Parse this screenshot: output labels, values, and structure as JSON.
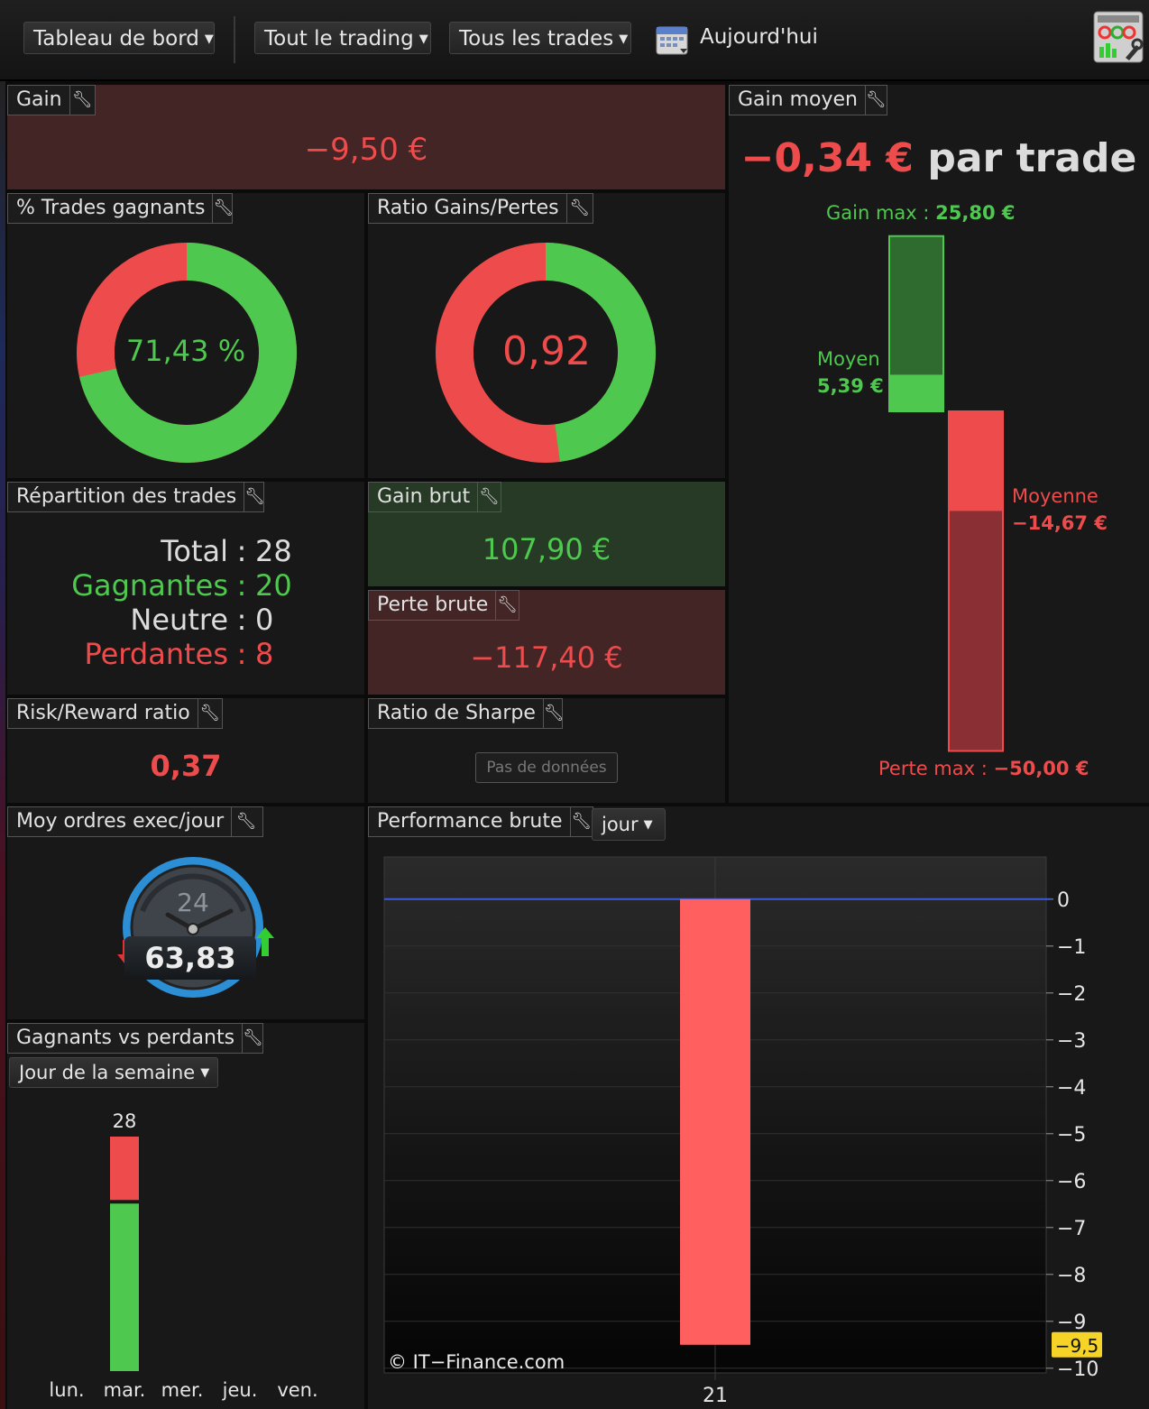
{
  "toolbar": {
    "dashboard": "Tableau de bord",
    "all_trading": "Tout le trading",
    "all_trades": "Tous les trades",
    "today": "Aujourd'hui"
  },
  "gain": {
    "title": "Gain",
    "value": "−9,50 €"
  },
  "avg_gain": {
    "title": "Gain moyen",
    "value": "−0,34 €",
    "suffix": "par trade",
    "max_gain_label": "Gain max :",
    "max_gain_value": "25,80 €",
    "avg_win_label": "Moyen",
    "avg_win_value": "5,39 €",
    "avg_loss_label": "Moyenne",
    "avg_loss_value": "−14,67 €",
    "max_loss_label": "Perte max :",
    "max_loss_value": "−50,00 €",
    "max_gain_num": 25.8,
    "avg_win_num": 5.39,
    "avg_loss_num": -14.67,
    "max_loss_num": -50.0
  },
  "win_pct": {
    "title": "% Trades gagnants",
    "value": "71,43 %",
    "fraction": 0.7143
  },
  "ratio": {
    "title": "Ratio Gains/Pertes",
    "value": "0,92",
    "green_fraction": 0.479
  },
  "split": {
    "title": "Répartition des trades",
    "rows": [
      {
        "label": "Total",
        "value": "28"
      },
      {
        "label": "Gagnantes",
        "value": "20"
      },
      {
        "label": "Neutre",
        "value": "0"
      },
      {
        "label": "Perdantes",
        "value": "8"
      }
    ]
  },
  "gross_gain": {
    "title": "Gain brut",
    "value": "107,90 €"
  },
  "gross_loss": {
    "title": "Perte brute",
    "value": "−117,40 €"
  },
  "risk_reward": {
    "title": "Risk/Reward ratio",
    "value": "0,37"
  },
  "sharpe": {
    "title": "Ratio de Sharpe",
    "nodata": "Pas de données"
  },
  "orders": {
    "title": "Moy ordres exec/jour",
    "value": "63,83",
    "dial_label": "24"
  },
  "perf": {
    "title": "Performance brute",
    "period": "jour",
    "copyright": "© IT−Finance.com",
    "marker": "−9,5"
  },
  "winlose": {
    "title": "Gagnants vs perdants",
    "period": "Jour de la semaine"
  },
  "chart_data": [
    {
      "type": "bar",
      "categories": [
        "21"
      ],
      "values": [
        -9.5
      ],
      "ylim": [
        -10.1,
        0.9
      ],
      "yticks": [
        0,
        -1,
        -2,
        -3,
        -4,
        -5,
        -6,
        -7,
        -8,
        -9,
        -10
      ],
      "ytick_labels": [
        "0",
        "−1",
        "−2",
        "−3",
        "−4",
        "−5",
        "−6",
        "−7",
        "−8",
        "−9",
        "−10"
      ]
    },
    {
      "type": "bar",
      "stacked": true,
      "categories": [
        "lun.",
        "mar.",
        "mer.",
        "jeu.",
        "ven."
      ],
      "series": [
        {
          "values": [
            0,
            20,
            0,
            0,
            0
          ],
          "color": "#4ec84e"
        },
        {
          "values": [
            0,
            8,
            0,
            0,
            0
          ],
          "color": "#ee4c4c"
        }
      ],
      "totals": [
        "",
        "28",
        "",
        "",
        ""
      ]
    }
  ],
  "colors": {
    "green": "#4ec84e",
    "red": "#ee4c4c",
    "accent": "#3a5ad8"
  }
}
